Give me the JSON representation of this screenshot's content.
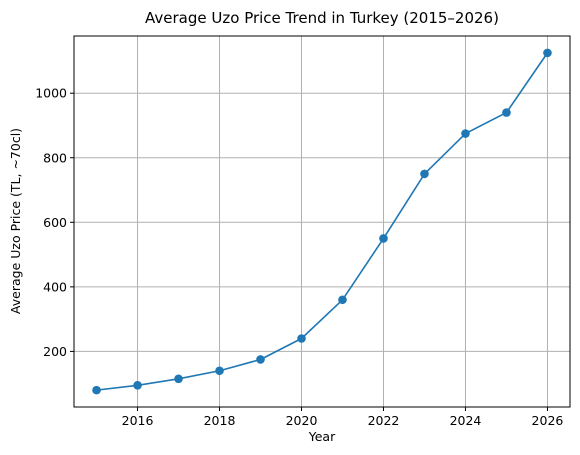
{
  "chart_data": {
    "type": "line",
    "title": "Average Uzo Price Trend in Turkey (2015–2026)",
    "xlabel": "Year",
    "ylabel": "Average Uzo Price (TL, ~70cl)",
    "x": [
      2015,
      2016,
      2017,
      2018,
      2019,
      2020,
      2021,
      2022,
      2023,
      2024,
      2025,
      2026
    ],
    "series": [
      {
        "values": [
          80,
          95,
          115,
          140,
          175,
          240,
          360,
          550,
          750,
          875,
          940,
          1125
        ],
        "color": "#1f77b4",
        "marker": "circle"
      }
    ],
    "xlim": [
      2014.45,
      2026.55
    ],
    "ylim": [
      27.75,
      1177.25
    ],
    "x_ticks": [
      "2016",
      "2018",
      "2020",
      "2022",
      "2024",
      "2026"
    ],
    "y_ticks": [
      "200",
      "400",
      "600",
      "800",
      "1000"
    ],
    "grid": true
  }
}
